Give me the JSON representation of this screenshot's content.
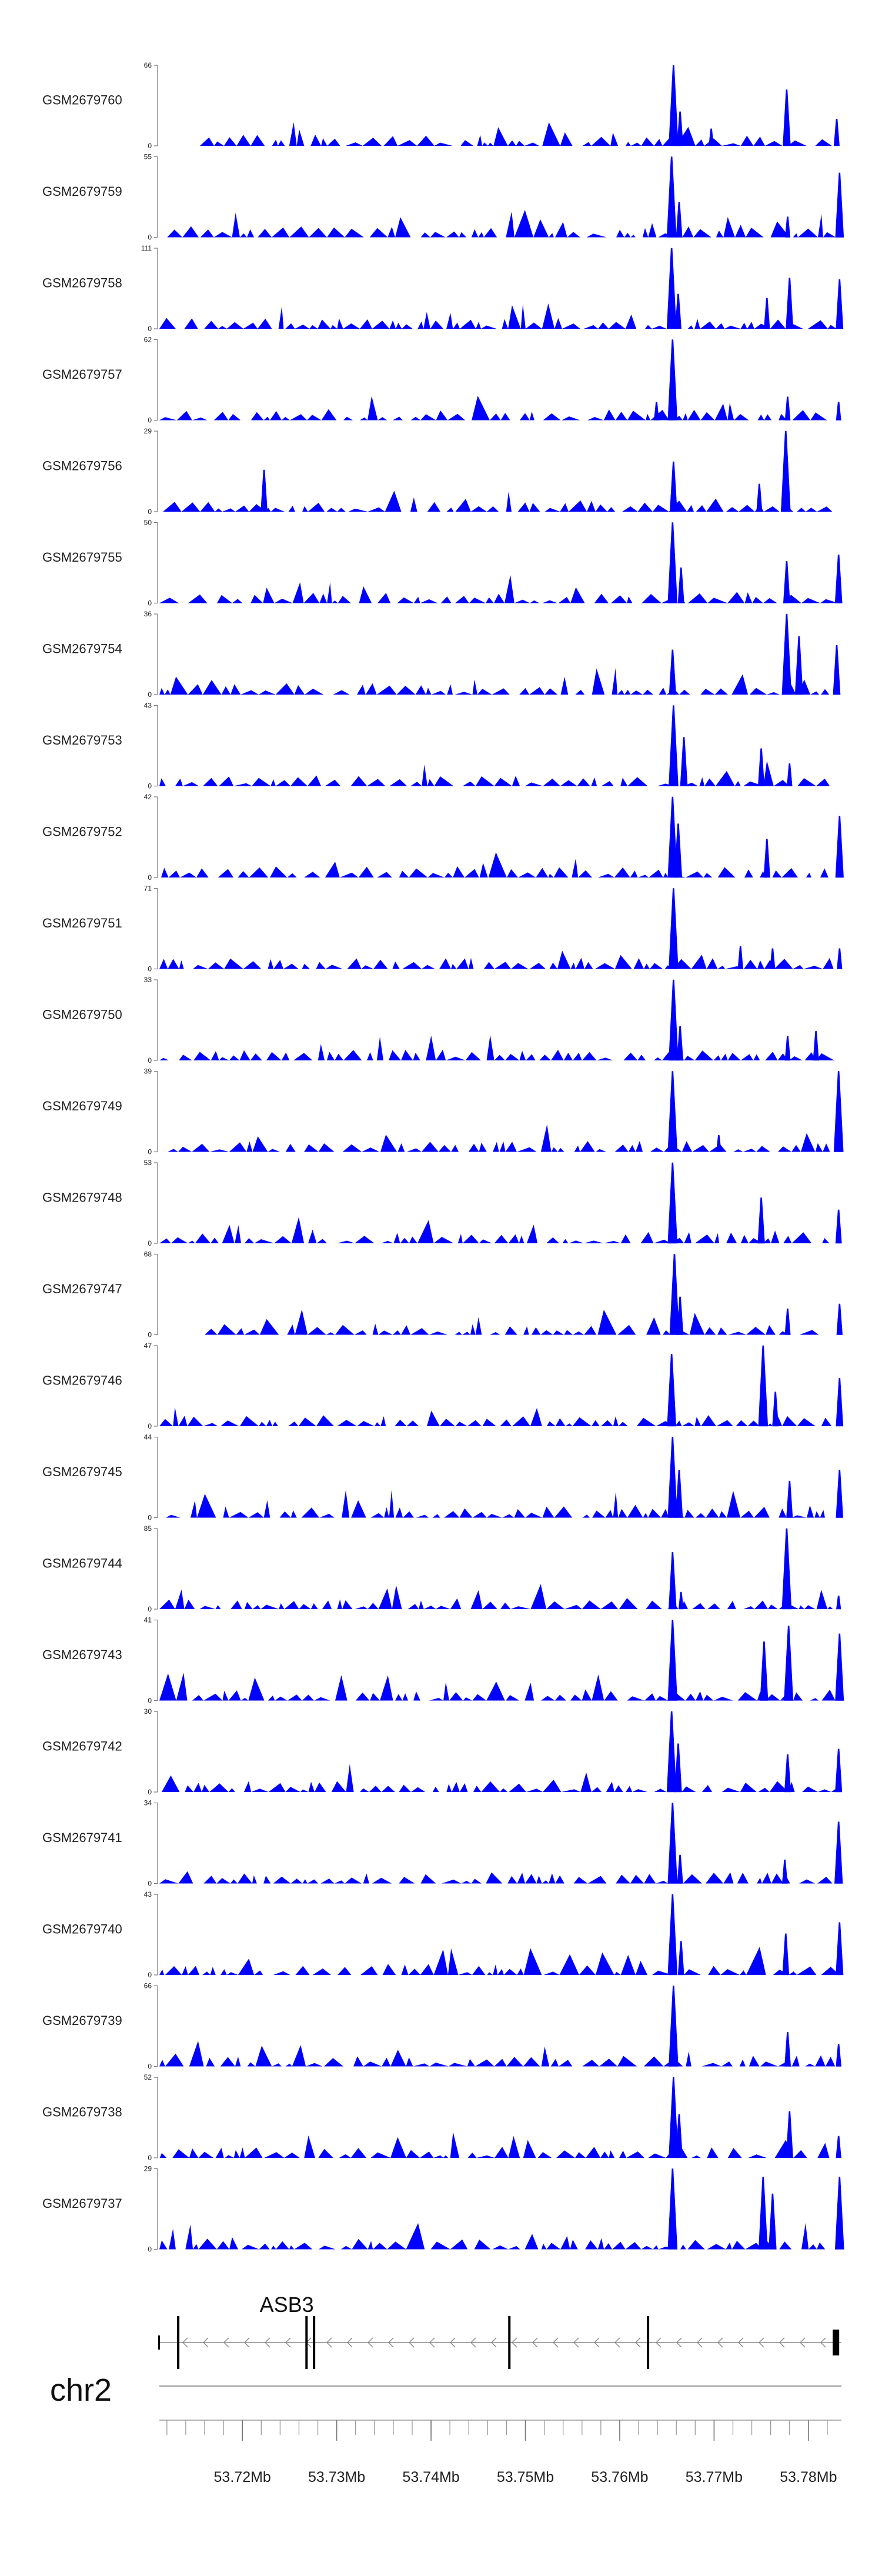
{
  "chart_data": {
    "type": "area",
    "title": "",
    "chromosome": "chr2",
    "x_unit": "Mb",
    "xlim": [
      53.7112,
      53.7835
    ],
    "x_ticks": [
      53.72,
      53.73,
      53.74,
      53.75,
      53.76,
      53.77,
      53.78
    ],
    "x_tick_labels": [
      "53.72Mb",
      "53.73Mb",
      "53.74Mb",
      "53.75Mb",
      "53.76Mb",
      "53.77Mb",
      "53.78Mb"
    ],
    "color": "#0000ff",
    "tracks": [
      {
        "name": "GSM2679760",
        "ymax": 66,
        "ymin_label": "0",
        "ymax_label": "66",
        "start": 53.7155,
        "peaks": [
          [
            53.7657,
            66
          ],
          [
            53.7664,
            28
          ],
          [
            53.7697,
            14
          ],
          [
            53.7777,
            46
          ],
          [
            53.783,
            22
          ]
        ]
      },
      {
        "name": "GSM2679759",
        "ymax": 55,
        "ymin_label": "0",
        "ymax_label": "55",
        "start": 53.7112,
        "peaks": [
          [
            53.7655,
            55
          ],
          [
            53.7663,
            24
          ],
          [
            53.7778,
            14
          ],
          [
            53.7833,
            44
          ]
        ]
      },
      {
        "name": "GSM2679758",
        "ymax": 111,
        "ymin_label": "0",
        "ymax_label": "111",
        "start": 53.7112,
        "peaks": [
          [
            53.7655,
            111
          ],
          [
            53.7662,
            48
          ],
          [
            53.7756,
            42
          ],
          [
            53.778,
            70
          ],
          [
            53.7833,
            68
          ]
        ]
      },
      {
        "name": "GSM2679757",
        "ymax": 62,
        "ymin_label": "0",
        "ymax_label": "62",
        "start": 53.7112,
        "peaks": [
          [
            53.7656,
            62
          ],
          [
            53.7639,
            14
          ],
          [
            53.7778,
            18
          ],
          [
            53.7832,
            14
          ]
        ]
      },
      {
        "name": "GSM2679756",
        "ymax": 29,
        "ymin_label": "0",
        "ymax_label": "29",
        "start": 53.7112,
        "peaks": [
          [
            53.7223,
            15
          ],
          [
            53.7657,
            18
          ],
          [
            53.7776,
            29
          ],
          [
            53.7748,
            10
          ]
        ]
      },
      {
        "name": "GSM2679755",
        "ymax": 50,
        "ymin_label": "0",
        "ymax_label": "50",
        "start": 53.7112,
        "peaks": [
          [
            53.7656,
            50
          ],
          [
            53.7665,
            22
          ],
          [
            53.7777,
            26
          ],
          [
            53.7832,
            30
          ]
        ]
      },
      {
        "name": "GSM2679754",
        "ymax": 36,
        "ymin_label": "0",
        "ymax_label": "36",
        "start": 53.7112,
        "peaks": [
          [
            53.7656,
            20
          ],
          [
            53.7777,
            36
          ],
          [
            53.779,
            26
          ],
          [
            53.783,
            22
          ]
        ]
      },
      {
        "name": "GSM2679753",
        "ymax": 43,
        "ymin_label": "0",
        "ymax_label": "43",
        "start": 53.7112,
        "peaks": [
          [
            53.7657,
            43
          ],
          [
            53.7668,
            26
          ],
          [
            53.775,
            20
          ],
          [
            53.778,
            12
          ]
        ]
      },
      {
        "name": "GSM2679752",
        "ymax": 42,
        "ymin_label": "0",
        "ymax_label": "42",
        "start": 53.7112,
        "peaks": [
          [
            53.7656,
            42
          ],
          [
            53.7662,
            28
          ],
          [
            53.7756,
            20
          ],
          [
            53.7833,
            32
          ]
        ]
      },
      {
        "name": "GSM2679751",
        "ymax": 71,
        "ymin_label": "0",
        "ymax_label": "71",
        "start": 53.7112,
        "peaks": [
          [
            53.7657,
            71
          ],
          [
            53.7728,
            20
          ],
          [
            53.7762,
            18
          ],
          [
            53.7833,
            18
          ]
        ]
      },
      {
        "name": "GSM2679750",
        "ymax": 33,
        "ymin_label": "0",
        "ymax_label": "33",
        "start": 53.7112,
        "peaks": [
          [
            53.7657,
            33
          ],
          [
            53.7664,
            14
          ],
          [
            53.7778,
            10
          ],
          [
            53.7808,
            12
          ]
        ]
      },
      {
        "name": "GSM2679749",
        "ymax": 39,
        "ymin_label": "0",
        "ymax_label": "39",
        "start": 53.7112,
        "peaks": [
          [
            53.7656,
            39
          ],
          [
            53.7832,
            39
          ],
          [
            53.7705,
            8
          ]
        ]
      },
      {
        "name": "GSM2679748",
        "ymax": 53,
        "ymin_label": "0",
        "ymax_label": "53",
        "start": 53.7112,
        "peaks": [
          [
            53.7656,
            53
          ],
          [
            53.775,
            30
          ],
          [
            53.7832,
            22
          ]
        ]
      },
      {
        "name": "GSM2679747",
        "ymax": 68,
        "ymin_label": "0",
        "ymax_label": "68",
        "start": 53.716,
        "peaks": [
          [
            53.7658,
            68
          ],
          [
            53.7664,
            32
          ],
          [
            53.7778,
            22
          ],
          [
            53.7833,
            26
          ]
        ]
      },
      {
        "name": "GSM2679746",
        "ymax": 47,
        "ymin_label": "0",
        "ymax_label": "47",
        "start": 53.7112,
        "peaks": [
          [
            53.7655,
            42
          ],
          [
            53.7752,
            47
          ],
          [
            53.7765,
            20
          ],
          [
            53.7833,
            28
          ]
        ]
      },
      {
        "name": "GSM2679745",
        "ymax": 44,
        "ymin_label": "0",
        "ymax_label": "44",
        "start": 53.7112,
        "peaks": [
          [
            53.7656,
            44
          ],
          [
            53.7663,
            26
          ],
          [
            53.778,
            20
          ],
          [
            53.7833,
            26
          ]
        ]
      },
      {
        "name": "GSM2679744",
        "ymax": 85,
        "ymin_label": "0",
        "ymax_label": "85",
        "start": 53.7112,
        "peaks": [
          [
            53.7656,
            60
          ],
          [
            53.7777,
            85
          ],
          [
            53.7665,
            18
          ],
          [
            53.7832,
            14
          ]
        ]
      },
      {
        "name": "GSM2679743",
        "ymax": 41,
        "ymin_label": "0",
        "ymax_label": "41",
        "start": 53.7112,
        "peaks": [
          [
            53.7656,
            41
          ],
          [
            53.7779,
            38
          ],
          [
            53.7753,
            30
          ],
          [
            53.7833,
            34
          ]
        ]
      },
      {
        "name": "GSM2679742",
        "ymax": 30,
        "ymin_label": "0",
        "ymax_label": "30",
        "start": 53.7112,
        "peaks": [
          [
            53.7655,
            30
          ],
          [
            53.7662,
            18
          ],
          [
            53.7778,
            14
          ],
          [
            53.7832,
            16
          ]
        ]
      },
      {
        "name": "GSM2679741",
        "ymax": 34,
        "ymin_label": "0",
        "ymax_label": "34",
        "start": 53.7112,
        "peaks": [
          [
            53.7656,
            34
          ],
          [
            53.7664,
            12
          ],
          [
            53.7832,
            26
          ],
          [
            53.7775,
            10
          ]
        ]
      },
      {
        "name": "GSM2679740",
        "ymax": 43,
        "ymin_label": "0",
        "ymax_label": "43",
        "start": 53.7112,
        "peaks": [
          [
            53.7656,
            43
          ],
          [
            53.7665,
            18
          ],
          [
            53.7776,
            22
          ],
          [
            53.7833,
            28
          ]
        ]
      },
      {
        "name": "GSM2679739",
        "ymax": 66,
        "ymin_label": "0",
        "ymax_label": "66",
        "start": 53.7112,
        "peaks": [
          [
            53.7657,
            66
          ],
          [
            53.7778,
            28
          ],
          [
            53.7832,
            18
          ]
        ]
      },
      {
        "name": "GSM2679738",
        "ymax": 52,
        "ymin_label": "0",
        "ymax_label": "52",
        "start": 53.7112,
        "peaks": [
          [
            53.7657,
            52
          ],
          [
            53.7663,
            28
          ],
          [
            53.778,
            30
          ],
          [
            53.7832,
            14
          ]
        ]
      },
      {
        "name": "GSM2679737",
        "ymax": 29,
        "ymin_label": "0",
        "ymax_label": "29",
        "start": 53.7112,
        "peaks": [
          [
            53.7656,
            29
          ],
          [
            53.7752,
            26
          ],
          [
            53.7762,
            20
          ],
          [
            53.7833,
            26
          ]
        ]
      }
    ],
    "gene": {
      "name": "ASB3",
      "start": 53.7112,
      "end": 53.7835,
      "strand": "-",
      "exons": [
        53.7112,
        53.7132,
        53.7268,
        53.7276,
        53.7483,
        53.763,
        53.7832
      ]
    }
  }
}
